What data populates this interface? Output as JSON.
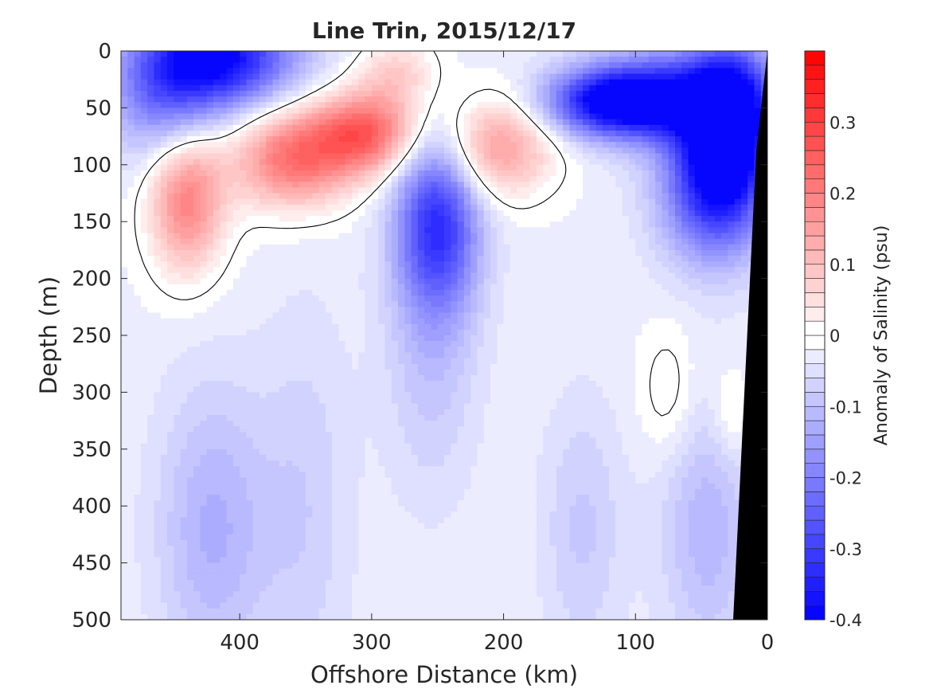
{
  "chart_data": {
    "type": "heatmap",
    "title": "Line Trin, 2015/12/17",
    "xlabel": "Offshore Distance (km)",
    "ylabel": "Depth (m)",
    "colorbar_label": "Anomaly of Salinity (psu)",
    "xlim": [
      490,
      0
    ],
    "ylim": [
      0,
      500
    ],
    "x_reversed": true,
    "y_reversed": true,
    "clim": [
      -0.4,
      0.4
    ],
    "x_ticks": [
      400,
      300,
      200,
      100,
      0
    ],
    "y_ticks": [
      0,
      50,
      100,
      150,
      200,
      250,
      300,
      350,
      400,
      450,
      500
    ],
    "colorbar_ticks": [
      -0.4,
      -0.3,
      -0.2,
      -0.1,
      0,
      0.1,
      0.2,
      0.3
    ],
    "colorbar_levels": 40,
    "colormap": {
      "low": "#0000ff",
      "zero": "#ffffff",
      "high": "#ff0000"
    },
    "contour_level": 0,
    "features": [
      {
        "sign": "neg",
        "x": 415,
        "y": 5,
        "sx": 40,
        "sy": 30,
        "value": -0.35
      },
      {
        "sign": "neg",
        "x": 455,
        "y": 40,
        "sx": 30,
        "sy": 40,
        "value": -0.18
      },
      {
        "sign": "neg",
        "x": 118,
        "y": 45,
        "sx": 35,
        "sy": 20,
        "value": -0.33
      },
      {
        "sign": "neg",
        "x": 70,
        "y": 40,
        "sx": 45,
        "sy": 30,
        "value": -0.25
      },
      {
        "sign": "neg",
        "x": 28,
        "y": 60,
        "sx": 22,
        "sy": 45,
        "value": -0.35
      },
      {
        "sign": "neg",
        "x": 40,
        "y": 120,
        "sx": 28,
        "sy": 45,
        "value": -0.3
      },
      {
        "sign": "neg",
        "x": 250,
        "y": 150,
        "sx": 22,
        "sy": 55,
        "value": -0.28
      },
      {
        "sign": "neg",
        "x": 255,
        "y": 260,
        "sx": 25,
        "sy": 90,
        "value": -0.07
      },
      {
        "sign": "neg",
        "x": 420,
        "y": 420,
        "sx": 30,
        "sy": 90,
        "value": -0.1
      },
      {
        "sign": "neg",
        "x": 350,
        "y": 400,
        "sx": 25,
        "sy": 120,
        "value": -0.05
      },
      {
        "sign": "neg",
        "x": 45,
        "y": 420,
        "sx": 25,
        "sy": 80,
        "value": -0.09
      },
      {
        "sign": "neg",
        "x": 140,
        "y": 420,
        "sx": 22,
        "sy": 80,
        "value": -0.06
      },
      {
        "sign": "pos",
        "x": 440,
        "y": 130,
        "sx": 20,
        "sy": 45,
        "value": 0.22
      },
      {
        "sign": "pos",
        "x": 360,
        "y": 95,
        "sx": 32,
        "sy": 30,
        "value": 0.24
      },
      {
        "sign": "pos",
        "x": 305,
        "y": 72,
        "sx": 28,
        "sy": 25,
        "value": 0.26
      },
      {
        "sign": "pos",
        "x": 280,
        "y": 20,
        "sx": 22,
        "sy": 22,
        "value": 0.1
      },
      {
        "sign": "pos",
        "x": 205,
        "y": 85,
        "sx": 30,
        "sy": 30,
        "value": 0.18
      },
      {
        "sign": "pos",
        "x": 75,
        "y": 300,
        "sx": 15,
        "sy": 40,
        "value": 0.05
      },
      {
        "sign": "pos",
        "x": 28,
        "y": 320,
        "sx": 10,
        "sy": 30,
        "value": 0.05
      }
    ]
  }
}
